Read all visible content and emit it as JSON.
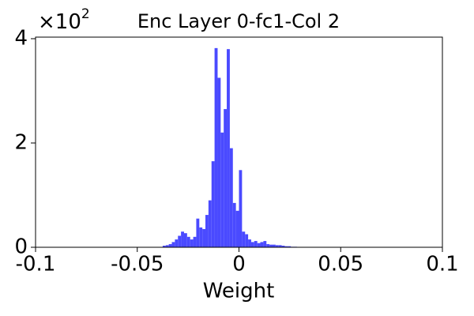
{
  "chart_data": {
    "type": "histogram",
    "title": "Enc Layer 0-fc1-Col 2",
    "xlabel": "Weight",
    "offset_text": {
      "base": "×10",
      "exponent": "2"
    },
    "color": "#4a4aff",
    "bins": [
      -0.0375,
      -0.036,
      -0.0345,
      -0.033,
      -0.0315,
      -0.03,
      -0.0285,
      -0.027,
      -0.0255,
      -0.024,
      -0.0225,
      -0.021,
      -0.0195,
      -0.018,
      -0.0165,
      -0.015,
      -0.0135,
      -0.012,
      -0.0105,
      -0.009,
      -0.0075,
      -0.006,
      -0.0045,
      -0.003,
      -0.0015,
      0,
      0.0015,
      0.003,
      0.0045,
      0.006,
      0.0075,
      0.009,
      0.0105,
      0.012,
      0.0135,
      0.015,
      0.0165,
      0.018,
      0.0195,
      0.021,
      0.0225,
      0.024,
      0.0255,
      0.027,
      0.0285
    ],
    "values": [
      0.03,
      0.04,
      0.06,
      0.1,
      0.15,
      0.22,
      0.3,
      0.27,
      0.2,
      0.15,
      0.2,
      0.55,
      0.38,
      0.35,
      0.62,
      0.9,
      1.65,
      3.82,
      3.25,
      2.2,
      2.65,
      3.8,
      1.9,
      0.85,
      0.7,
      1.48,
      0.3,
      0.25,
      0.15,
      0.1,
      0.12,
      0.08,
      0.1,
      0.12,
      0.06,
      0.05,
      0.05,
      0.04,
      0.04,
      0.03,
      0.02,
      0.02,
      0.01,
      0.01
    ],
    "xlim": [
      -0.1,
      0.1
    ],
    "xticks": [
      -0.1,
      -0.05,
      0,
      0.05,
      0.1
    ],
    "ylim": [
      0,
      4.03
    ],
    "yticks": [
      0,
      2,
      4
    ]
  }
}
